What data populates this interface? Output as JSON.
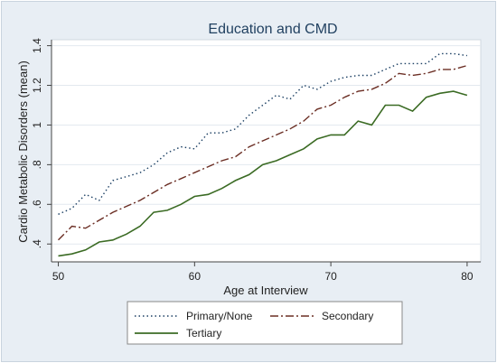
{
  "chart_data": {
    "type": "line",
    "title": "Education and CMD",
    "xlabel": "Age at Interview",
    "ylabel": "Cardio Metabolic Disorders (mean)",
    "xlim": [
      49.5,
      81
    ],
    "ylim": [
      0.31,
      1.43
    ],
    "xticks": [
      "50",
      "60",
      "70",
      "80"
    ],
    "yticks": [
      ".4",
      ".6",
      ".8",
      "1",
      "1.2",
      "1.4"
    ],
    "grid": true,
    "legend": "bottom",
    "x": [
      50,
      51,
      52,
      53,
      54,
      55,
      56,
      57,
      58,
      59,
      60,
      61,
      62,
      63,
      64,
      65,
      66,
      67,
      68,
      69,
      70,
      71,
      72,
      73,
      74,
      75,
      76,
      77,
      78,
      79,
      80
    ],
    "series": [
      {
        "name": "Primary/None",
        "color": "#1b3f63",
        "dash": "dot",
        "values": [
          0.55,
          0.58,
          0.65,
          0.62,
          0.72,
          0.74,
          0.76,
          0.8,
          0.86,
          0.89,
          0.88,
          0.96,
          0.96,
          0.98,
          1.05,
          1.1,
          1.15,
          1.13,
          1.2,
          1.18,
          1.22,
          1.24,
          1.25,
          1.25,
          1.28,
          1.31,
          1.31,
          1.31,
          1.36,
          1.36,
          1.35
        ]
      },
      {
        "name": "Secondary",
        "color": "#6b2e24",
        "dash": "longdash-dot",
        "values": [
          0.42,
          0.49,
          0.48,
          0.52,
          0.56,
          0.59,
          0.62,
          0.66,
          0.7,
          0.73,
          0.76,
          0.79,
          0.82,
          0.84,
          0.89,
          0.92,
          0.95,
          0.98,
          1.02,
          1.08,
          1.1,
          1.14,
          1.17,
          1.18,
          1.21,
          1.26,
          1.25,
          1.26,
          1.28,
          1.28,
          1.3
        ]
      },
      {
        "name": "Tertiary",
        "color": "#3b6b24",
        "dash": "solid",
        "values": [
          0.34,
          0.35,
          0.37,
          0.41,
          0.42,
          0.45,
          0.49,
          0.56,
          0.57,
          0.6,
          0.64,
          0.65,
          0.68,
          0.72,
          0.75,
          0.8,
          0.82,
          0.85,
          0.88,
          0.93,
          0.95,
          0.95,
          1.02,
          1.0,
          1.1,
          1.1,
          1.07,
          1.14,
          1.16,
          1.17,
          1.15
        ]
      }
    ]
  },
  "colors": {
    "panel_background": "#e8eef4",
    "plot_background": "#ffffff",
    "gridline": "#e3e9ef",
    "title": "#1f3f5f"
  }
}
